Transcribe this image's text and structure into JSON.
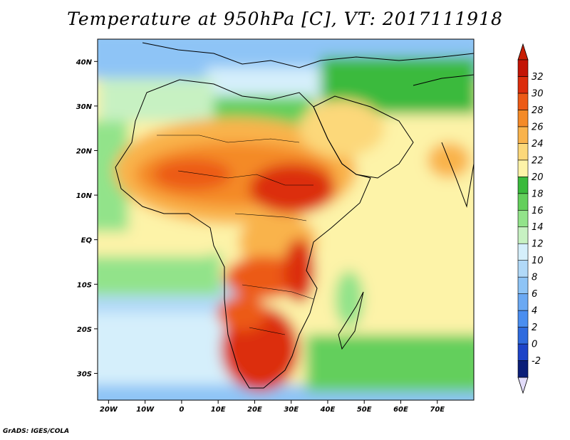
{
  "title": "Temperature at 950hPa [C], VT: 2017111918",
  "footer": "GrADS: IGES/COLA",
  "map": {
    "lon_range": [
      -23,
      80
    ],
    "lat_range": [
      -36,
      45
    ],
    "lon_ticks": [
      {
        "value": -20,
        "label": "20W"
      },
      {
        "value": -10,
        "label": "10W"
      },
      {
        "value": 0,
        "label": "0"
      },
      {
        "value": 10,
        "label": "10E"
      },
      {
        "value": 20,
        "label": "20E"
      },
      {
        "value": 30,
        "label": "30E"
      },
      {
        "value": 40,
        "label": "40E"
      },
      {
        "value": 50,
        "label": "50E"
      },
      {
        "value": 60,
        "label": "60E"
      },
      {
        "value": 70,
        "label": "70E"
      }
    ],
    "lat_ticks": [
      {
        "value": 40,
        "label": "40N"
      },
      {
        "value": 30,
        "label": "30N"
      },
      {
        "value": 20,
        "label": "20N"
      },
      {
        "value": 10,
        "label": "10N"
      },
      {
        "value": 0,
        "label": "EQ"
      },
      {
        "value": -10,
        "label": "10S"
      },
      {
        "value": -20,
        "label": "20S"
      },
      {
        "value": -30,
        "label": "30S"
      }
    ]
  },
  "colorbar": {
    "labels": [
      "-2",
      "0",
      "2",
      "4",
      "6",
      "8",
      "10",
      "12",
      "14",
      "16",
      "18",
      "20",
      "22",
      "24",
      "26",
      "28",
      "30",
      "32"
    ],
    "colors": [
      "#0b1e78",
      "#1d44c8",
      "#2f6bde",
      "#4a8ef0",
      "#6ba9f3",
      "#8ec4f6",
      "#b1d9f8",
      "#d5effb",
      "#c7f1c2",
      "#92e38a",
      "#63cf5b",
      "#3aba3c",
      "#fdf3a8",
      "#fcd87a",
      "#f9b34c",
      "#f48a27",
      "#ec5a16",
      "#dc2d0c",
      "#c31405"
    ],
    "under_color": "#e2dcfa",
    "over_color": "#c81e04"
  }
}
